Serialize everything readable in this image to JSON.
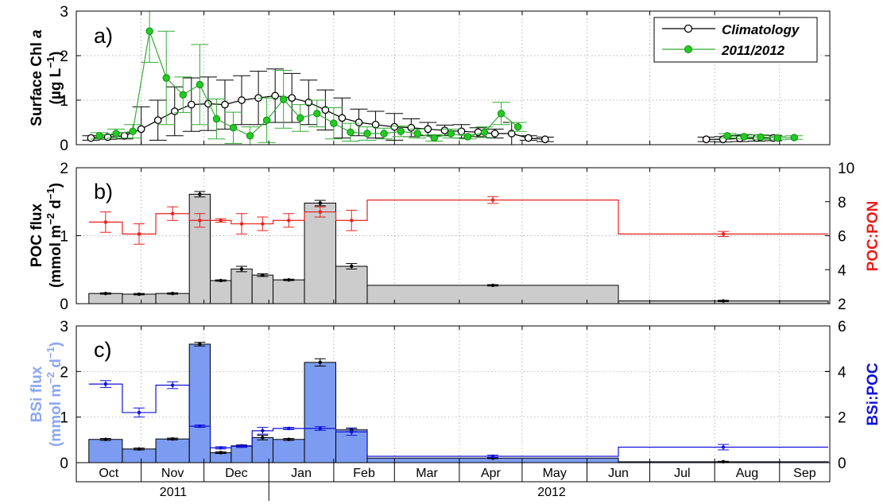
{
  "colors": {
    "climatology": "#000000",
    "year": "#22cc22",
    "year_err": "#33aa33",
    "poc_bar": "#cccccc",
    "ratio_poc": "#e8201c",
    "bsi_bar": "#7b9cf0",
    "bsi_label": "#8aa6f2",
    "ratio_bsi": "#1010dd"
  },
  "months": [
    "Oct",
    "Nov",
    "Dec",
    "Jan",
    "Feb",
    "Mar",
    "Apr",
    "May",
    "Jun",
    "Jul",
    "Aug",
    "Sep"
  ],
  "years": [
    "2011",
    "2012"
  ],
  "chart_data": [
    {
      "type": "line",
      "panel": "a)",
      "ylabel_line1": "Surface Chl ",
      "ylabel_italic": "a",
      "ylabel_line2": "(µg L",
      "ylabel_sup": "−1",
      "ylabel_close": ")",
      "ylim": [
        0,
        3
      ],
      "yticks": [
        "0",
        "1",
        "2",
        "3"
      ],
      "grid": true,
      "legend_position": "top-right",
      "series": [
        {
          "name": "Climatology",
          "points": [
            {
              "x": "2011-10-08",
              "y": 0.15,
              "err": 0.05
            },
            {
              "x": "2011-10-16",
              "y": 0.17,
              "err": 0.05
            },
            {
              "x": "2011-10-24",
              "y": 0.2,
              "err": 0.07
            },
            {
              "x": "2011-11-01",
              "y": 0.35,
              "err": 0.5
            },
            {
              "x": "2011-11-09",
              "y": 0.55,
              "err": 0.45
            },
            {
              "x": "2011-11-17",
              "y": 0.75,
              "err": 0.55
            },
            {
              "x": "2011-11-25",
              "y": 0.9,
              "err": 0.6
            },
            {
              "x": "2011-12-03",
              "y": 0.92,
              "err": 0.6
            },
            {
              "x": "2011-12-11",
              "y": 0.9,
              "err": 0.55
            },
            {
              "x": "2011-12-19",
              "y": 1.0,
              "err": 0.55
            },
            {
              "x": "2011-12-27",
              "y": 1.05,
              "err": 0.6
            },
            {
              "x": "2012-01-04",
              "y": 1.1,
              "err": 0.6
            },
            {
              "x": "2012-01-12",
              "y": 1.05,
              "err": 0.55
            },
            {
              "x": "2012-01-20",
              "y": 0.95,
              "err": 0.5
            },
            {
              "x": "2012-01-28",
              "y": 0.78,
              "err": 0.45
            },
            {
              "x": "2012-02-05",
              "y": 0.6,
              "err": 0.45
            },
            {
              "x": "2012-02-13",
              "y": 0.5,
              "err": 0.3
            },
            {
              "x": "2012-02-21",
              "y": 0.45,
              "err": 0.3
            },
            {
              "x": "2012-03-01",
              "y": 0.4,
              "err": 0.3
            },
            {
              "x": "2012-03-09",
              "y": 0.38,
              "err": 0.2
            },
            {
              "x": "2012-03-17",
              "y": 0.35,
              "err": 0.15
            },
            {
              "x": "2012-03-25",
              "y": 0.32,
              "err": 0.12
            },
            {
              "x": "2012-04-02",
              "y": 0.3,
              "err": 0.15
            },
            {
              "x": "2012-04-10",
              "y": 0.28,
              "err": 0.1
            },
            {
              "x": "2012-04-18",
              "y": 0.25,
              "err": 0.1
            },
            {
              "x": "2012-04-26",
              "y": 0.25,
              "err": 0.25
            },
            {
              "x": "2012-05-04",
              "y": 0.15,
              "err": 0.05
            },
            {
              "x": "2012-05-12",
              "y": 0.12,
              "err": 0.05
            },
            {
              "x": "2012-07-28",
              "y": 0.12,
              "err": 0.05
            },
            {
              "x": "2012-08-05",
              "y": 0.12,
              "err": 0.06
            },
            {
              "x": "2012-08-13",
              "y": 0.14,
              "err": 0.07
            },
            {
              "x": "2012-08-21",
              "y": 0.15,
              "err": 0.07
            },
            {
              "x": "2012-08-29",
              "y": 0.15,
              "err": 0.06
            }
          ]
        },
        {
          "name": "2011/2012",
          "points": [
            {
              "x": "2011-10-12",
              "y": 0.2,
              "err": 0.07
            },
            {
              "x": "2011-10-20",
              "y": 0.25,
              "err": 0.1
            },
            {
              "x": "2011-10-28",
              "y": 0.3,
              "err": 0.15
            },
            {
              "x": "2011-11-05",
              "y": 2.55,
              "err": 0.7
            },
            {
              "x": "2011-11-13",
              "y": 1.5,
              "err": 1.05
            },
            {
              "x": "2011-11-21",
              "y": 1.12,
              "err": 0.4
            },
            {
              "x": "2011-11-29",
              "y": 1.35,
              "err": 0.9
            },
            {
              "x": "2011-12-07",
              "y": 0.58,
              "err": 0.45
            },
            {
              "x": "2011-12-15",
              "y": 0.38,
              "err": 0.35
            },
            {
              "x": "2011-12-23",
              "y": 0.2,
              "err": 0.2
            },
            {
              "x": "2011-12-31",
              "y": 0.55,
              "err": 0.5
            },
            {
              "x": "2012-01-08",
              "y": 1.02,
              "err": 0.65
            },
            {
              "x": "2012-01-16",
              "y": 0.6,
              "err": 0.3
            },
            {
              "x": "2012-01-24",
              "y": 0.7,
              "err": 0.3
            },
            {
              "x": "2012-02-01",
              "y": 0.48,
              "err": 0.35
            },
            {
              "x": "2012-02-09",
              "y": 0.28,
              "err": 0.2
            },
            {
              "x": "2012-02-17",
              "y": 0.25,
              "err": 0.15
            },
            {
              "x": "2012-02-25",
              "y": 0.25,
              "err": 0.12
            },
            {
              "x": "2012-03-04",
              "y": 0.3,
              "err": 0.12
            },
            {
              "x": "2012-03-12",
              "y": 0.25,
              "err": 0.1
            },
            {
              "x": "2012-03-20",
              "y": 0.15,
              "err": 0.07
            },
            {
              "x": "2012-03-28",
              "y": 0.25,
              "err": 0.1
            },
            {
              "x": "2012-04-05",
              "y": 0.18,
              "err": 0.05
            },
            {
              "x": "2012-04-13",
              "y": 0.28,
              "err": 0.12
            },
            {
              "x": "2012-04-21",
              "y": 0.7,
              "err": 0.25
            },
            {
              "x": "2012-04-29",
              "y": 0.4,
              "err": 0.1
            },
            {
              "x": "2012-08-07",
              "y": 0.2,
              "err": 0.05
            },
            {
              "x": "2012-08-15",
              "y": 0.18,
              "err": 0.05
            },
            {
              "x": "2012-08-23",
              "y": 0.17,
              "err": 0.05
            },
            {
              "x": "2012-08-31",
              "y": 0.15,
              "err": 0.04
            },
            {
              "x": "2012-09-08",
              "y": 0.16,
              "err": 0.04
            }
          ]
        }
      ]
    },
    {
      "type": "bar",
      "panel": "b)",
      "ylabel_line1": "POC flux",
      "ylabel_line2_a": "(mmol m",
      "ylabel_sup1": "−2",
      "ylabel_mid": " d",
      "ylabel_sup2": "−1",
      "ylabel_close": ")",
      "ylabel_right": "POC:PON",
      "ylim": [
        0,
        2
      ],
      "yticks": [
        "0",
        "1",
        "2"
      ],
      "ylim_right": [
        2,
        10
      ],
      "yticks_right": [
        "2",
        "4",
        "6",
        "8",
        "10"
      ],
      "grid": true,
      "bars": [
        {
          "start": "2011-10-07",
          "end": "2011-10-23",
          "value": 0.15,
          "err": 0.01
        },
        {
          "start": "2011-10-23",
          "end": "2011-11-08",
          "value": 0.14,
          "err": 0.01
        },
        {
          "start": "2011-11-08",
          "end": "2011-11-24",
          "value": 0.15,
          "err": 0.01
        },
        {
          "start": "2011-11-24",
          "end": "2011-12-04",
          "value": 1.61,
          "err": 0.04
        },
        {
          "start": "2011-12-04",
          "end": "2011-12-14",
          "value": 0.34,
          "err": 0.01
        },
        {
          "start": "2011-12-14",
          "end": "2011-12-24",
          "value": 0.51,
          "err": 0.04
        },
        {
          "start": "2011-12-24",
          "end": "2012-01-03",
          "value": 0.42,
          "err": 0.02
        },
        {
          "start": "2012-01-03",
          "end": "2012-01-18",
          "value": 0.35,
          "err": 0.01
        },
        {
          "start": "2012-01-18",
          "end": "2012-02-02",
          "value": 1.48,
          "err": 0.04
        },
        {
          "start": "2012-02-02",
          "end": "2012-02-17",
          "value": 0.55,
          "err": 0.04
        },
        {
          "start": "2012-02-17",
          "end": "2012-06-16",
          "value": 0.27,
          "err": 0.01
        },
        {
          "start": "2012-06-16",
          "end": "2012-10-14",
          "value": 0.04,
          "err": 0.01
        }
      ],
      "ratio": [
        {
          "start": "2011-10-07",
          "end": "2011-10-23",
          "value": 6.8,
          "err": 0.6
        },
        {
          "start": "2011-10-23",
          "end": "2011-11-08",
          "value": 6.1,
          "err": 0.6
        },
        {
          "start": "2011-11-08",
          "end": "2011-11-24",
          "value": 7.3,
          "err": 0.4
        },
        {
          "start": "2011-11-24",
          "end": "2011-12-04",
          "value": 6.9,
          "err": 0.4
        },
        {
          "start": "2011-12-04",
          "end": "2011-12-14",
          "value": 6.9,
          "err": 0.1
        },
        {
          "start": "2011-12-14",
          "end": "2011-12-24",
          "value": 6.7,
          "err": 0.6
        },
        {
          "start": "2011-12-24",
          "end": "2012-01-03",
          "value": 6.7,
          "err": 0.4
        },
        {
          "start": "2012-01-03",
          "end": "2012-01-18",
          "value": 6.9,
          "err": 0.4
        },
        {
          "start": "2012-01-18",
          "end": "2012-02-02",
          "value": 7.4,
          "err": 0.3
        },
        {
          "start": "2012-02-02",
          "end": "2012-02-17",
          "value": 6.9,
          "err": 0.6
        },
        {
          "start": "2012-02-17",
          "end": "2012-06-16",
          "value": 8.1,
          "err": 0.2
        },
        {
          "start": "2012-06-16",
          "end": "2012-10-14",
          "value": 6.1,
          "err": 0.15
        }
      ]
    },
    {
      "type": "bar",
      "panel": "c)",
      "ylabel_line1": "BSi flux",
      "ylabel_line2_a": "(mmol m",
      "ylabel_sup1": "−2",
      "ylabel_mid": " d",
      "ylabel_sup2": "−1",
      "ylabel_close": ")",
      "ylabel_right": "BSi:POC",
      "ylim": [
        0,
        3
      ],
      "yticks": [
        "0",
        "1",
        "2",
        "3"
      ],
      "ylim_right": [
        0,
        6
      ],
      "yticks_right": [
        "0",
        "2",
        "4",
        "6"
      ],
      "grid": true,
      "bars": [
        {
          "start": "2011-10-07",
          "end": "2011-10-23",
          "value": 0.51,
          "err": 0.02
        },
        {
          "start": "2011-10-23",
          "end": "2011-11-08",
          "value": 0.3,
          "err": 0.02
        },
        {
          "start": "2011-11-08",
          "end": "2011-11-24",
          "value": 0.52,
          "err": 0.02
        },
        {
          "start": "2011-11-24",
          "end": "2011-12-04",
          "value": 2.6,
          "err": 0.04
        },
        {
          "start": "2011-12-04",
          "end": "2011-12-14",
          "value": 0.22,
          "err": 0.02
        },
        {
          "start": "2011-12-14",
          "end": "2011-12-24",
          "value": 0.37,
          "err": 0.02
        },
        {
          "start": "2011-12-24",
          "end": "2012-01-03",
          "value": 0.55,
          "err": 0.05
        },
        {
          "start": "2012-01-03",
          "end": "2012-01-18",
          "value": 0.51,
          "err": 0.02
        },
        {
          "start": "2012-01-18",
          "end": "2012-02-02",
          "value": 2.2,
          "err": 0.08
        },
        {
          "start": "2012-02-02",
          "end": "2012-02-17",
          "value": 0.72,
          "err": 0.04
        },
        {
          "start": "2012-02-17",
          "end": "2012-06-16",
          "value": 0.1,
          "err": 0.01
        },
        {
          "start": "2012-06-16",
          "end": "2012-10-14",
          "value": 0.02,
          "err": 0.01
        }
      ],
      "ratio": [
        {
          "start": "2011-10-07",
          "end": "2011-10-23",
          "value": 3.45,
          "err": 0.15
        },
        {
          "start": "2011-10-23",
          "end": "2011-11-08",
          "value": 2.2,
          "err": 0.2
        },
        {
          "start": "2011-11-08",
          "end": "2011-11-24",
          "value": 3.4,
          "err": 0.15
        },
        {
          "start": "2011-11-24",
          "end": "2011-12-04",
          "value": 1.6,
          "err": 0.05
        },
        {
          "start": "2011-12-04",
          "end": "2011-12-14",
          "value": 0.65,
          "err": 0.05
        },
        {
          "start": "2011-12-14",
          "end": "2011-12-24",
          "value": 0.72,
          "err": 0.05
        },
        {
          "start": "2011-12-24",
          "end": "2012-01-03",
          "value": 1.4,
          "err": 0.15
        },
        {
          "start": "2012-01-03",
          "end": "2012-01-18",
          "value": 1.5,
          "err": 0.05
        },
        {
          "start": "2012-01-18",
          "end": "2012-02-02",
          "value": 1.5,
          "err": 0.08
        },
        {
          "start": "2012-02-02",
          "end": "2012-02-17",
          "value": 1.35,
          "err": 0.15
        },
        {
          "start": "2012-02-17",
          "end": "2012-06-16",
          "value": 0.28,
          "err": 0.05
        },
        {
          "start": "2012-06-16",
          "end": "2012-10-14",
          "value": 0.68,
          "err": 0.12
        }
      ]
    }
  ]
}
